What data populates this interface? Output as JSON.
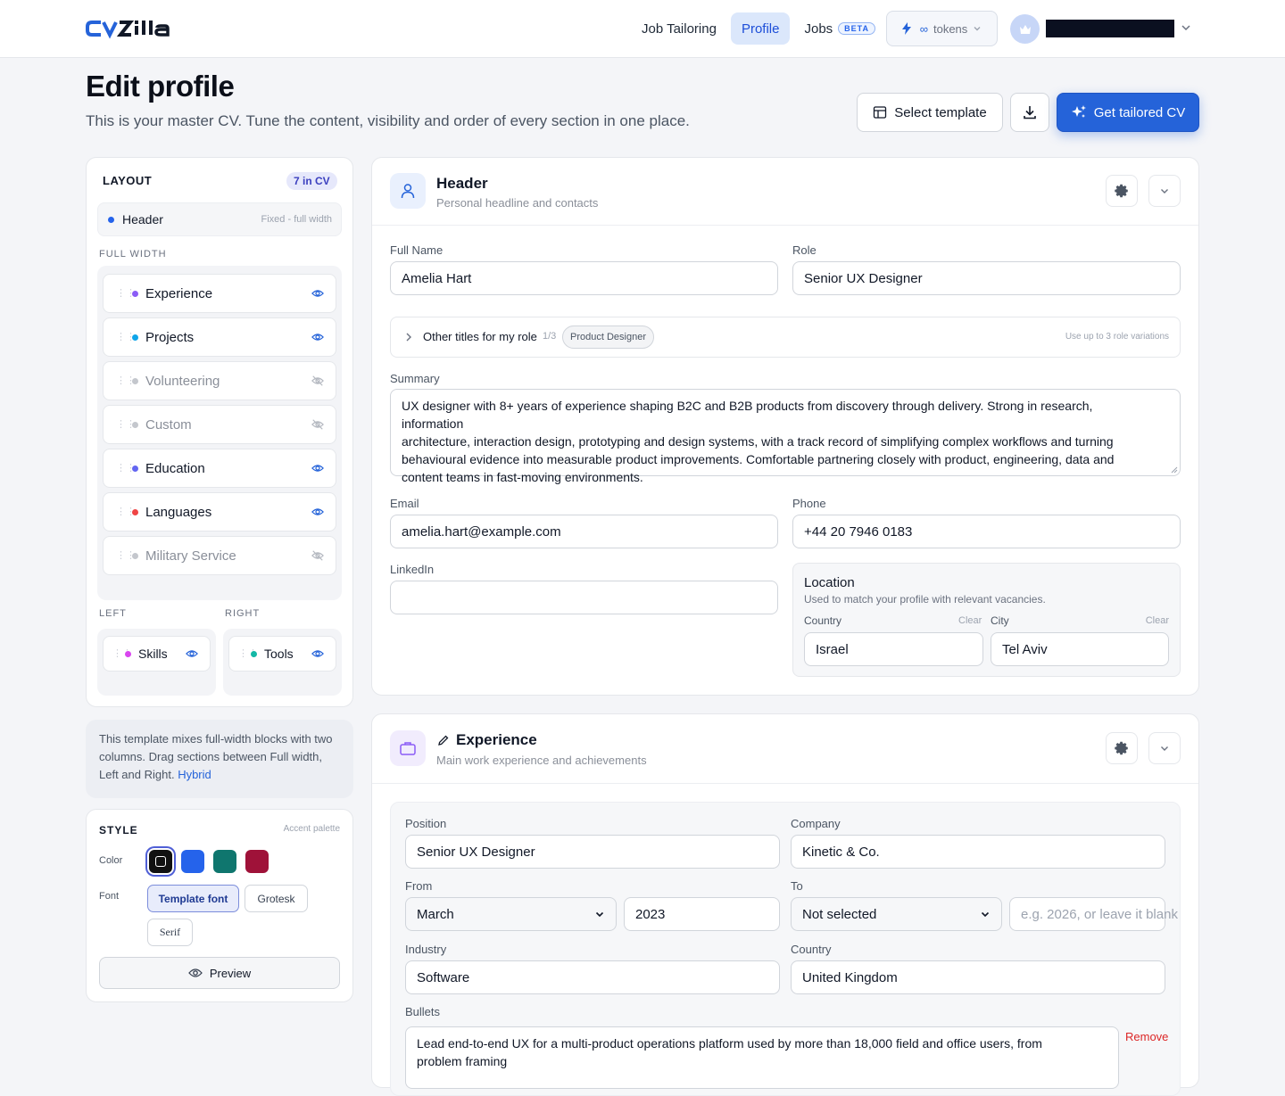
{
  "brand": {
    "logo_text": "CVZilla"
  },
  "nav": {
    "job_tailoring": "Job Tailoring",
    "profile": "Profile",
    "jobs": "Jobs",
    "jobs_badge": "BETA",
    "tokens_symbol": "∞",
    "tokens_label": "tokens"
  },
  "page": {
    "title": "Edit profile",
    "subtitle": "This is your master CV. Tune the content, visibility and order of every section in one place."
  },
  "actions": {
    "select_template": "Select template",
    "get_tailored": "Get tailored CV"
  },
  "layout": {
    "title": "LAYOUT",
    "count_badge": "7 in CV",
    "header_item": {
      "label": "Header",
      "note": "Fixed - full width"
    },
    "full_width_label": "FULL WIDTH",
    "full_width_items": [
      {
        "label": "Experience",
        "color": "#8b5cf6",
        "visible": true
      },
      {
        "label": "Projects",
        "color": "#0ea5e9",
        "visible": true
      },
      {
        "label": "Volunteering",
        "color": "#c4c7cd",
        "visible": false
      },
      {
        "label": "Custom",
        "color": "#c4c7cd",
        "visible": false
      },
      {
        "label": "Education",
        "color": "#6366f1",
        "visible": true
      },
      {
        "label": "Languages",
        "color": "#ef4444",
        "visible": true
      },
      {
        "label": "Military Service",
        "color": "#c4c7cd",
        "visible": false
      }
    ],
    "left_label": "LEFT",
    "right_label": "RIGHT",
    "left_items": [
      {
        "label": "Skills",
        "color": "#d946ef",
        "visible": true
      }
    ],
    "right_items": [
      {
        "label": "Tools",
        "color": "#14b8a6",
        "visible": true
      }
    ]
  },
  "template_note": {
    "text": "This template mixes full-width blocks with two columns. Drag sections between Full width, Left and Right.",
    "link": "Hybrid"
  },
  "style": {
    "title": "STYLE",
    "palette_label": "Accent palette",
    "color_label": "Color",
    "colors": [
      "#111111",
      "#2563eb",
      "#0f766e",
      "#9f1239"
    ],
    "selected_color": "#111111",
    "font_label": "Font",
    "fonts": [
      "Template font",
      "Grotesk",
      "Serif"
    ],
    "selected_font": "Template font",
    "preview": "Preview"
  },
  "header_card": {
    "title": "Header",
    "subtitle": "Personal headline and contacts",
    "full_name_label": "Full Name",
    "full_name": "Amelia Hart",
    "role_label": "Role",
    "role": "Senior UX Designer",
    "other_titles_label": "Other titles for my role",
    "other_titles_count": "1/3",
    "other_titles_chip": "Product Designer",
    "other_titles_hint": "Use up to 3 role variations",
    "summary_label": "Summary",
    "summary_lines": [
      "UX designer with 8+ years of experience shaping B2C and B2B products from discovery through delivery. Strong in research,",
      "information",
      "architecture, interaction design, prototyping and design systems, with a track record of simplifying complex workflows and turning",
      "behavioural evidence into measurable product improvements. Comfortable partnering closely with product, engineering, data and",
      "content teams in fast-moving environments."
    ],
    "email_label": "Email",
    "email": "amelia.hart@example.com",
    "phone_label": "Phone",
    "phone": "+44 20 7946 0183",
    "linkedin_label": "LinkedIn",
    "linkedin": "",
    "location_title": "Location",
    "location_sub": "Used to match your profile with relevant vacancies.",
    "country_label": "Country",
    "city_label": "City",
    "clear_label": "Clear",
    "country": "Israel",
    "city": "Tel Aviv"
  },
  "experience_card": {
    "title": "Experience",
    "subtitle": "Main work experience and achievements",
    "position_label": "Position",
    "position": "Senior UX Designer",
    "company_label": "Company",
    "company": "Kinetic & Co.",
    "from_label": "From",
    "from_month": "March",
    "from_year": "2023",
    "to_label": "To",
    "to_month": "Not selected",
    "to_year_placeholder": "e.g. 2026, or leave it blank",
    "industry_label": "Industry",
    "industry": "Software",
    "country_label": "Country",
    "country": "United Kingdom",
    "bullets_label": "Bullets",
    "remove_label": "Remove",
    "bullet_lines": [
      "Lead end-to-end UX for a multi-product operations platform used by more than 18,000 field and office users, from",
      "problem framing"
    ]
  }
}
